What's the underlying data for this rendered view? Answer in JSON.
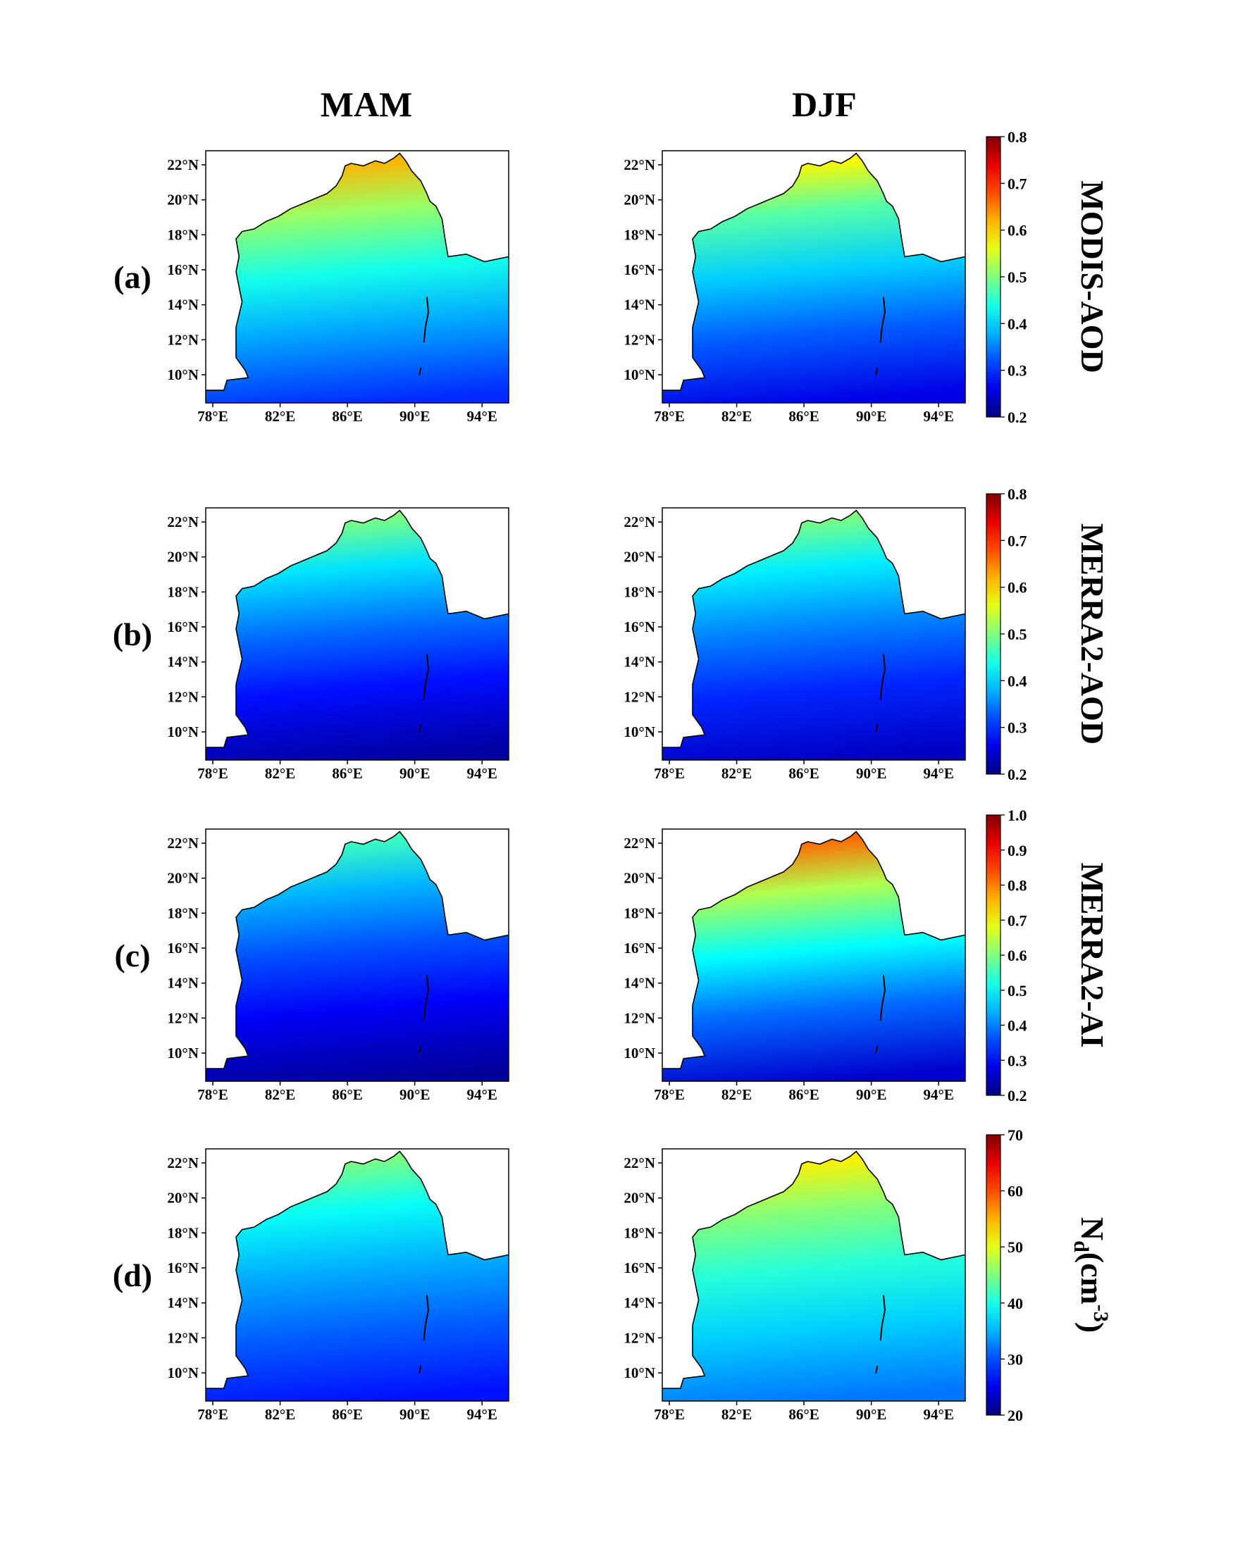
{
  "columns": [
    "MAM",
    "DJF"
  ],
  "x_ticks": [
    "78°E",
    "82°E",
    "86°E",
    "90°E",
    "94°E"
  ],
  "y_ticks": [
    "22°N",
    "20°N",
    "18°N",
    "16°N",
    "14°N",
    "12°N",
    "10°N"
  ],
  "colormap": "jet",
  "rows": [
    {
      "label": "(a)",
      "variable": "MODIS-AOD",
      "colorbar": {
        "ticks": [
          "0.2",
          "0.3",
          "0.4",
          "0.5",
          "0.6",
          "0.7",
          "0.8"
        ],
        "range": [
          0.2,
          0.8
        ]
      },
      "coast_value": {
        "MAM": 0.62,
        "DJF": 0.58
      },
      "open_sea_value": {
        "MAM": 0.3,
        "DJF": 0.26
      }
    },
    {
      "label": "(b)",
      "variable": "MERRA2-AOD",
      "colorbar": {
        "ticks": [
          "0.2",
          "0.3",
          "0.4",
          "0.5",
          "0.6",
          "0.7",
          "0.8"
        ],
        "range": [
          0.2,
          0.8
        ]
      },
      "coast_value": {
        "MAM": 0.5,
        "DJF": 0.5
      },
      "open_sea_value": {
        "MAM": 0.22,
        "DJF": 0.24
      }
    },
    {
      "label": "(c)",
      "variable": "MERRA2-AI",
      "colorbar": {
        "ticks": [
          "0.2",
          "0.3",
          "0.4",
          "0.5",
          "0.6",
          "0.7",
          "0.8",
          "0.9",
          "1.0"
        ],
        "range": [
          0.2,
          1.0
        ]
      },
      "coast_value": {
        "MAM": 0.55,
        "DJF": 0.82
      },
      "open_sea_value": {
        "MAM": 0.22,
        "DJF": 0.26
      }
    },
    {
      "label": "(d)",
      "variable": "N<sub>d</sub>(cm<sup>-3</sup>)",
      "variable_text": "Nd(cm-3)",
      "colorbar": {
        "ticks": [
          "20",
          "30",
          "40",
          "50",
          "60",
          "70"
        ],
        "range": [
          20,
          70
        ]
      },
      "coast_value": {
        "MAM": 45,
        "DJF": 52
      },
      "open_sea_value": {
        "MAM": 27,
        "DJF": 32
      }
    }
  ]
}
